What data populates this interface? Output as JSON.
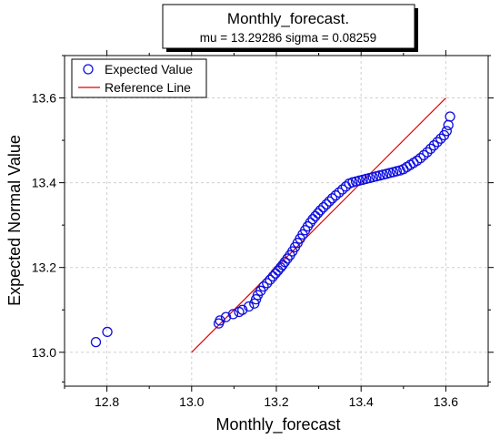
{
  "chart_data": {
    "type": "scatter",
    "title": "Monthly_forecast.",
    "subtitle": "mu = 13.29286  sigma = 0.08259",
    "xlabel": "Monthly_forecast",
    "ylabel": "Expected Normal Value",
    "xlim": [
      12.7,
      13.7
    ],
    "ylim": [
      12.92,
      13.7
    ],
    "x_ticks": [
      "12.8",
      "13.0",
      "13.2",
      "13.4",
      "13.6"
    ],
    "y_ticks": [
      "13.0",
      "13.2",
      "13.4",
      "13.6"
    ],
    "grid": true,
    "legend_position": "top-left",
    "series": [
      {
        "name": "Expected Value",
        "marker": "open-circle",
        "color": "#1010e0",
        "x": [
          12.774,
          12.801,
          13.064,
          13.067,
          13.081,
          13.098,
          13.112,
          13.12,
          13.135,
          13.148,
          13.152,
          13.156,
          13.163,
          13.17,
          13.178,
          13.185,
          13.192,
          13.198,
          13.204,
          13.21,
          13.215,
          13.22,
          13.226,
          13.232,
          13.238,
          13.244,
          13.25,
          13.256,
          13.262,
          13.268,
          13.274,
          13.28,
          13.286,
          13.292,
          13.298,
          13.304,
          13.311,
          13.318,
          13.325,
          13.332,
          13.34,
          13.348,
          13.356,
          13.364,
          13.372,
          13.38,
          13.388,
          13.396,
          13.404,
          13.412,
          13.42,
          13.428,
          13.436,
          13.444,
          13.452,
          13.46,
          13.468,
          13.476,
          13.484,
          13.492,
          13.5,
          13.508,
          13.516,
          13.524,
          13.532,
          13.54,
          13.548,
          13.556,
          13.564,
          13.572,
          13.58,
          13.588,
          13.596,
          13.602,
          13.606,
          13.61
        ],
        "y": [
          13.024,
          13.048,
          13.068,
          13.075,
          13.083,
          13.09,
          13.095,
          13.1,
          13.108,
          13.115,
          13.125,
          13.135,
          13.145,
          13.155,
          13.163,
          13.171,
          13.179,
          13.186,
          13.193,
          13.2,
          13.206,
          13.213,
          13.221,
          13.229,
          13.238,
          13.248,
          13.258,
          13.268,
          13.278,
          13.288,
          13.297,
          13.306,
          13.314,
          13.321,
          13.328,
          13.335,
          13.342,
          13.349,
          13.356,
          13.363,
          13.37,
          13.377,
          13.384,
          13.391,
          13.398,
          13.401,
          13.403,
          13.405,
          13.407,
          13.409,
          13.411,
          13.413,
          13.415,
          13.417,
          13.419,
          13.421,
          13.423,
          13.425,
          13.427,
          13.429,
          13.432,
          13.437,
          13.442,
          13.447,
          13.452,
          13.458,
          13.465,
          13.472,
          13.48,
          13.488,
          13.496,
          13.504,
          13.512,
          13.522,
          13.536,
          13.556
        ]
      },
      {
        "name": "Reference Line",
        "line": true,
        "color": "#e00000",
        "x": [
          13.0,
          13.6
        ],
        "y": [
          13.0,
          13.6
        ]
      }
    ]
  }
}
